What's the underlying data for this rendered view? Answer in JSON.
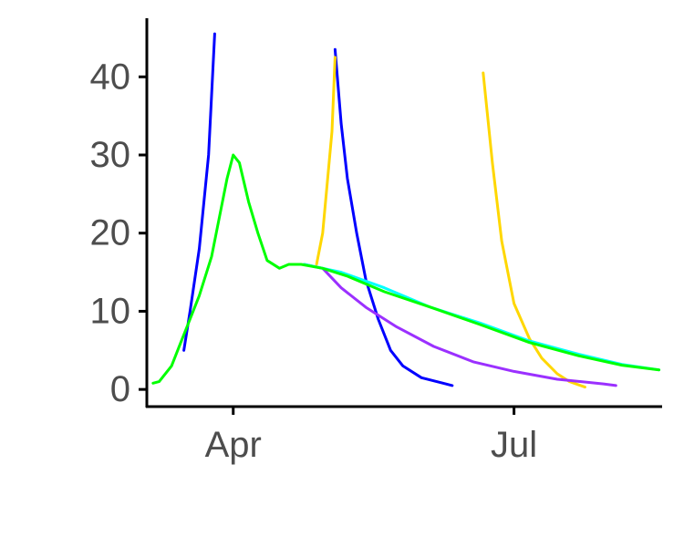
{
  "chart_data": {
    "type": "line",
    "title": "",
    "xlabel": "",
    "ylabel": "",
    "x_axis": {
      "type": "date",
      "range": [
        "2020-03-04",
        "2020-08-18"
      ],
      "ticks": [
        {
          "value": "2020-04-01",
          "label": "Apr"
        },
        {
          "value": "2020-07-01",
          "label": "Jul"
        }
      ]
    },
    "y_axis": {
      "range": [
        -2.2,
        47.5
      ],
      "ticks": [
        0,
        10,
        20,
        30,
        40
      ]
    },
    "grid": false,
    "legend": "none",
    "series": [
      {
        "color": "#0000ff",
        "points": [
          [
            "2020-03-16",
            5
          ],
          [
            "2020-03-18",
            10
          ],
          [
            "2020-03-21",
            18
          ],
          [
            "2020-03-24",
            30
          ],
          [
            "2020-03-26",
            45.5
          ]
        ]
      },
      {
        "color": "#0000ff",
        "points": [
          [
            "2020-05-04",
            43.5
          ],
          [
            "2020-05-06",
            34
          ],
          [
            "2020-05-08",
            27
          ],
          [
            "2020-05-11",
            20
          ],
          [
            "2020-05-14",
            14
          ],
          [
            "2020-05-18",
            9
          ],
          [
            "2020-05-22",
            5
          ],
          [
            "2020-05-26",
            3
          ],
          [
            "2020-06-01",
            1.5
          ],
          [
            "2020-06-08",
            0.8
          ],
          [
            "2020-06-11",
            0.5
          ]
        ]
      },
      {
        "color": "#ffd700",
        "points": [
          [
            "2020-04-28",
            16
          ],
          [
            "2020-04-30",
            20
          ],
          [
            "2020-05-03",
            33
          ],
          [
            "2020-05-04",
            42.5
          ]
        ]
      },
      {
        "color": "#ffd700",
        "points": [
          [
            "2020-06-21",
            40.5
          ],
          [
            "2020-06-24",
            29
          ],
          [
            "2020-06-27",
            19
          ],
          [
            "2020-07-01",
            11
          ],
          [
            "2020-07-06",
            6.5
          ],
          [
            "2020-07-10",
            4
          ],
          [
            "2020-07-15",
            2
          ],
          [
            "2020-07-19",
            1
          ],
          [
            "2020-07-24",
            0.3
          ]
        ]
      },
      {
        "color": "#9b30ff",
        "points": [
          [
            "2020-04-24",
            16
          ],
          [
            "2020-04-30",
            15.5
          ],
          [
            "2020-05-06",
            13
          ],
          [
            "2020-05-14",
            10.5
          ],
          [
            "2020-05-24",
            8
          ],
          [
            "2020-06-05",
            5.5
          ],
          [
            "2020-06-18",
            3.5
          ],
          [
            "2020-07-01",
            2.3
          ],
          [
            "2020-07-15",
            1.3
          ],
          [
            "2020-07-30",
            0.7
          ],
          [
            "2020-08-03",
            0.5
          ]
        ]
      },
      {
        "color": "#00ffff",
        "points": [
          [
            "2020-04-24",
            16
          ],
          [
            "2020-05-06",
            15
          ],
          [
            "2020-05-20",
            13
          ],
          [
            "2020-06-04",
            10.5
          ],
          [
            "2020-06-20",
            8.5
          ],
          [
            "2020-07-06",
            6.2
          ],
          [
            "2020-07-22",
            4.5
          ],
          [
            "2020-08-05",
            3.2
          ],
          [
            "2020-08-17",
            2.5
          ]
        ]
      },
      {
        "color": "#00ff00",
        "points": [
          [
            "2020-03-06",
            0.8
          ],
          [
            "2020-03-08",
            1
          ],
          [
            "2020-03-12",
            3
          ],
          [
            "2020-03-15",
            6
          ],
          [
            "2020-03-18",
            9
          ],
          [
            "2020-03-21",
            12
          ],
          [
            "2020-03-25",
            17
          ],
          [
            "2020-03-28",
            23
          ],
          [
            "2020-03-30",
            27
          ],
          [
            "2020-04-01",
            30
          ],
          [
            "2020-04-03",
            29
          ],
          [
            "2020-04-06",
            24
          ],
          [
            "2020-04-09",
            20
          ],
          [
            "2020-04-12",
            16.5
          ],
          [
            "2020-04-16",
            15.5
          ],
          [
            "2020-04-19",
            16
          ],
          [
            "2020-04-23",
            16
          ],
          [
            "2020-04-30",
            15.5
          ],
          [
            "2020-05-08",
            14.5
          ],
          [
            "2020-05-20",
            12.5
          ],
          [
            "2020-06-04",
            10.5
          ],
          [
            "2020-06-20",
            8.3
          ],
          [
            "2020-07-06",
            6
          ],
          [
            "2020-07-22",
            4.3
          ],
          [
            "2020-08-05",
            3.1
          ],
          [
            "2020-08-17",
            2.5
          ]
        ]
      }
    ]
  }
}
